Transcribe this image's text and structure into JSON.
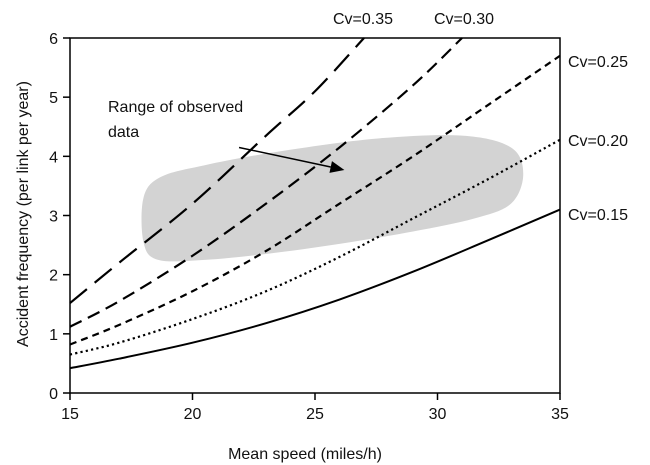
{
  "chart_data": {
    "type": "line",
    "title": "",
    "xlabel": "Mean speed (miles/h)",
    "ylabel": "Accident frequency (per link per year)",
    "xlim": [
      15,
      35
    ],
    "ylim": [
      0,
      6
    ],
    "xticks": [
      15,
      20,
      25,
      30,
      35
    ],
    "yticks": [
      0,
      1,
      2,
      3,
      4,
      5,
      6
    ],
    "grid": false,
    "series": [
      {
        "name": "Cv=0.15",
        "style": "solid",
        "x": [
          15,
          17,
          20,
          23,
          26,
          29,
          32,
          35
        ],
        "y": [
          0.42,
          0.58,
          0.85,
          1.18,
          1.58,
          2.05,
          2.57,
          3.1
        ]
      },
      {
        "name": "Cv=0.20",
        "style": "dotted",
        "x": [
          15,
          17,
          20,
          23,
          26,
          29,
          32,
          35
        ],
        "y": [
          0.65,
          0.85,
          1.25,
          1.72,
          2.3,
          2.95,
          3.6,
          4.28
        ]
      },
      {
        "name": "Cv=0.25",
        "style": "short-dash",
        "x": [
          15,
          17,
          20,
          23,
          26,
          29,
          32,
          35
        ],
        "y": [
          0.82,
          1.15,
          1.72,
          2.4,
          3.2,
          4.0,
          4.85,
          5.7
        ]
      },
      {
        "name": "Cv=0.30",
        "style": "medium-dash",
        "x": [
          15,
          17,
          20,
          23,
          26,
          29,
          31
        ],
        "y": [
          1.12,
          1.55,
          2.32,
          3.2,
          4.15,
          5.2,
          6.0
        ]
      },
      {
        "name": "Cv=0.35",
        "style": "long-dash",
        "x": [
          15,
          17,
          20,
          23,
          25,
          27
        ],
        "y": [
          1.52,
          2.2,
          3.2,
          4.35,
          5.1,
          6.0
        ]
      }
    ],
    "region": {
      "label": "Range of observed data",
      "color": "#d3d3d3",
      "outline": [
        [
          18.6,
          2.72
        ],
        [
          20.5,
          2.9
        ],
        [
          23.0,
          3.15
        ],
        [
          25.5,
          3.38
        ],
        [
          28.0,
          3.55
        ],
        [
          30.5,
          3.75
        ],
        [
          32.5,
          3.96
        ],
        [
          33.3,
          4.1
        ],
        [
          33.2,
          4.25
        ],
        [
          32.0,
          4.33
        ],
        [
          30.0,
          4.35
        ],
        [
          27.0,
          4.22
        ],
        [
          24.0,
          4.0
        ],
        [
          21.0,
          3.8
        ],
        [
          19.0,
          3.63
        ],
        [
          18.3,
          3.45
        ],
        [
          18.0,
          3.0
        ],
        [
          18.0,
          2.55
        ],
        [
          18.6,
          2.25
        ],
        [
          20.5,
          2.25
        ],
        [
          23.0,
          2.35
        ],
        [
          26.0,
          2.52
        ],
        [
          29.0,
          2.73
        ],
        [
          31.5,
          2.95
        ],
        [
          33.0,
          3.2
        ],
        [
          33.5,
          3.7
        ],
        [
          33.0,
          4.15
        ],
        [
          31.0,
          4.38
        ],
        [
          27.5,
          4.3
        ],
        [
          23.5,
          4.05
        ],
        [
          20.5,
          3.82
        ],
        [
          18.7,
          3.65
        ],
        [
          18.0,
          3.3
        ],
        [
          18.2,
          2.5
        ]
      ]
    },
    "annotation": {
      "lines": [
        "Range of observed",
        "data"
      ],
      "arrow_from": [
        21.9,
        4.15
      ],
      "arrow_to": [
        26.2,
        3.77
      ]
    }
  },
  "style": {
    "line_color": "#000000",
    "region_color": "#d3d3d3"
  }
}
